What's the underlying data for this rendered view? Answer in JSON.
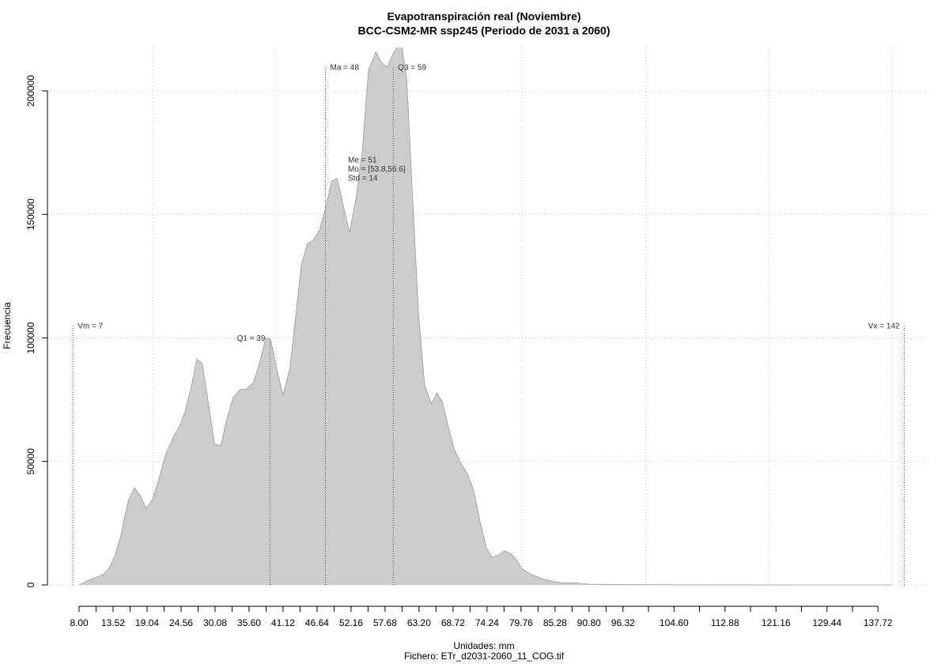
{
  "chart_data": {
    "type": "area",
    "title": "Evapotranspiración real (Noviembre)",
    "subtitle": "BCC-CSM2-MR ssp245 (Periodo de 2031 a 2060)",
    "x_label": "Unidades: mm",
    "caption": "Fichero: ETr_d2031-2060_11_COG.tif",
    "y_label": "Frecuencia",
    "color": "#cccccc",
    "line_color": "#9a9a9a",
    "x": [
      8,
      9.3,
      10.6,
      11.9,
      12.9,
      13.8,
      14.7,
      16.0,
      17.0,
      18.0,
      18.9,
      19.9,
      20.8,
      22.1,
      23.4,
      24.4,
      25.3,
      26.4,
      27.1,
      28.0,
      28.9,
      30.0,
      31.0,
      32.0,
      33.0,
      34.1,
      35.2,
      36.3,
      37.2,
      38.3,
      39.1,
      40.1,
      41.1,
      42.2,
      43.2,
      44.1,
      45.1,
      46.0,
      47.0,
      48.1,
      49.0,
      49.9,
      50.9,
      51.9,
      53.0,
      54.0,
      55.0,
      56.2,
      57.1,
      58.0,
      59.0,
      59.8,
      60.4,
      61.2,
      62.0,
      63.1,
      64.1,
      65.2,
      66.1,
      67.0,
      67.9,
      68.9,
      69.9,
      71.1,
      72.1,
      73.1,
      74.1,
      75.0,
      76.1,
      77.1,
      78.0,
      78.9,
      79.9,
      81.2,
      83.1,
      85.1,
      86.3,
      88.9,
      90.8,
      94.1,
      96.6,
      100.5,
      110.7,
      123.6,
      139.9
    ],
    "values": [
      0,
      1600,
      2900,
      4200,
      7000,
      11800,
      19200,
      34200,
      39400,
      35800,
      31000,
      34600,
      41600,
      53100,
      60500,
      64600,
      71000,
      82200,
      91500,
      89600,
      75200,
      57000,
      56300,
      67200,
      75800,
      79000,
      79400,
      81900,
      89000,
      99800,
      99500,
      87400,
      76800,
      87400,
      109400,
      129600,
      138200,
      139500,
      143400,
      153000,
      163500,
      164500,
      153600,
      142700,
      157100,
      176000,
      208600,
      215700,
      211500,
      209600,
      215000,
      218600,
      218200,
      204800,
      164800,
      110400,
      81000,
      73300,
      77800,
      73900,
      64600,
      55000,
      49600,
      44800,
      38100,
      25600,
      15400,
      11200,
      12200,
      13800,
      12800,
      10600,
      6700,
      4500,
      2600,
      1300,
      960,
      800,
      320,
      200,
      100,
      50,
      20,
      10,
      0
    ],
    "xlim": [
      2.86,
      145.4
    ],
    "ylim": [
      -8640,
      217600
    ],
    "xticks": [
      {
        "value": 8,
        "label": "8.00"
      },
      13.52,
      19.04,
      24.56,
      30.08,
      {
        "value": 35.6,
        "label": "35.60"
      },
      41.12,
      46.64,
      52.16,
      57.68,
      {
        "value": 63.2,
        "label": "63.20"
      },
      68.72,
      74.24,
      79.76,
      85.28,
      {
        "value": 90.8,
        "label": "90.80"
      },
      96.32,
      {
        "value": 104.6,
        "label": "104.60"
      },
      112.88,
      121.16,
      129.44,
      137.72
    ],
    "xminor_ticks": [
      10.76,
      16.28,
      21.8,
      27.32,
      32.84,
      38.36,
      43.88,
      49.4,
      54.92,
      60.44,
      65.96,
      71.48,
      77,
      82.52,
      88.04,
      93.56,
      100.46,
      108.74,
      117.02,
      125.3,
      133.58
    ],
    "yticks": [
      0,
      50000,
      100000,
      150000,
      200000
    ],
    "xgrid": [
      20,
      40,
      60,
      80,
      100,
      120,
      140
    ],
    "grid": true,
    "annotations": [
      {
        "label": "Vm = 7",
        "x": 7,
        "y": 105000,
        "side": "right"
      },
      {
        "label": "Q1 = 39",
        "x": 39,
        "y": 100000,
        "side": "left"
      },
      {
        "label": "Ma = 48",
        "x": 48,
        "y": 209600,
        "side": "right"
      },
      {
        "label": "Q3 = 59",
        "x": 59,
        "y": 209600,
        "side": "right"
      },
      {
        "label": "Vx = 142",
        "x": 142,
        "y": 105000,
        "side": "left"
      }
    ],
    "stats": [
      "Me = 51",
      "Mo = [53.8,56.6]",
      "Std = 14"
    ]
  }
}
